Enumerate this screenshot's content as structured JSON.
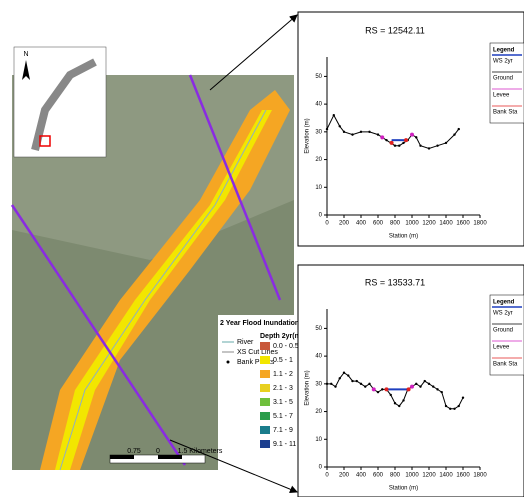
{
  "map": {
    "north": "N",
    "legend_title": "2 Year Flood Inundation",
    "items": [
      "River",
      "XS Cut Lines",
      "Bank Points"
    ],
    "depth_title": "Depth 2yr(m)",
    "depth_classes": [
      {
        "label": "0.0 - 0.5",
        "color": "#c8583a"
      },
      {
        "label": "0.5 - 1",
        "color": "#f2e600"
      },
      {
        "label": "1.1 - 2",
        "color": "#f5a623"
      },
      {
        "label": "2.1 - 3",
        "color": "#e8d020"
      },
      {
        "label": "3.1 - 5",
        "color": "#6fbf3c"
      },
      {
        "label": "5.1 - 7",
        "color": "#2a9c4a"
      },
      {
        "label": "7.1 - 9",
        "color": "#1a7d8c"
      },
      {
        "label": "9.1 - 11",
        "color": "#1c3f8f"
      }
    ],
    "scale": [
      "0.75",
      "0",
      "1.5 Kilometers"
    ]
  },
  "chart_data": [
    {
      "type": "line",
      "title": "RS = 12542.11",
      "y_label": "Elevation (m)",
      "x_label": "Station (m)",
      "xlim": [
        0,
        1800
      ],
      "ylim": [
        0,
        57
      ],
      "xticks": [
        0,
        200,
        400,
        600,
        800,
        1000,
        1200,
        1400,
        1600,
        1800
      ],
      "yticks": [
        0,
        10,
        20,
        30,
        40,
        50
      ],
      "legend_title": "Legend",
      "series": [
        {
          "name": "WS 2yr",
          "color": "#1f3fbf",
          "x": [
            760,
            930
          ],
          "values": [
            27,
            27
          ]
        },
        {
          "name": "Ground",
          "color": "#000000",
          "x": [
            0,
            80,
            150,
            200,
            300,
            400,
            500,
            600,
            650,
            700,
            750,
            800,
            850,
            900,
            950,
            1000,
            1050,
            1100,
            1200,
            1300,
            1400,
            1500,
            1550
          ],
          "values": [
            31,
            36,
            32,
            30,
            29,
            30,
            30,
            29,
            28,
            27,
            26,
            25,
            25,
            26,
            27,
            29,
            28,
            25,
            24,
            25,
            26,
            29,
            31
          ]
        },
        {
          "name": "Levee",
          "color": "#d020c0",
          "x": [
            650,
            1000
          ],
          "values": [
            28,
            29
          ]
        },
        {
          "name": "Bank Sta",
          "color": "#e02020",
          "x": [
            760,
            930
          ],
          "values": [
            26,
            27
          ]
        }
      ]
    },
    {
      "type": "line",
      "title": "RS = 13533.71",
      "y_label": "Elevation (m)",
      "x_label": "Station (m)",
      "xlim": [
        0,
        1800
      ],
      "ylim": [
        0,
        57
      ],
      "xticks": [
        0,
        200,
        400,
        600,
        800,
        1000,
        1200,
        1400,
        1600,
        1800
      ],
      "yticks": [
        0,
        10,
        20,
        30,
        40,
        50
      ],
      "legend_title": "Legend",
      "series": [
        {
          "name": "WS 2yr",
          "color": "#1f3fbf",
          "x": [
            700,
            960
          ],
          "values": [
            28,
            28
          ]
        },
        {
          "name": "Ground",
          "color": "#000000",
          "x": [
            0,
            50,
            100,
            150,
            200,
            250,
            300,
            350,
            400,
            450,
            500,
            550,
            600,
            650,
            700,
            750,
            800,
            850,
            900,
            950,
            1000,
            1050,
            1100,
            1150,
            1200,
            1250,
            1300,
            1350,
            1400,
            1450,
            1500,
            1550,
            1600
          ],
          "values": [
            30,
            30,
            29,
            32,
            34,
            33,
            31,
            31,
            30,
            29,
            30,
            28,
            27,
            28,
            28,
            26,
            23,
            22,
            24,
            28,
            29,
            30,
            29,
            31,
            30,
            29,
            28,
            27,
            22,
            21,
            21,
            22,
            25
          ]
        },
        {
          "name": "Levee",
          "color": "#d020c0",
          "x": [
            550,
            1000
          ],
          "values": [
            28,
            29
          ]
        },
        {
          "name": "Bank Sta",
          "color": "#e02020",
          "x": [
            700,
            960
          ],
          "values": [
            28,
            28
          ]
        }
      ]
    }
  ]
}
